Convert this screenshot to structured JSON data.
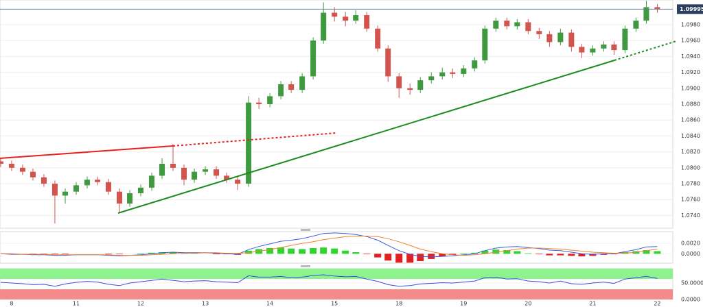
{
  "chart_data": [
    {
      "type": "candlestick",
      "x": [
        -0.17,
        0,
        0.17,
        0.33,
        0.5,
        0.67,
        0.83,
        1,
        1.17,
        1.33,
        1.5,
        1.67,
        1.83,
        2,
        2.17,
        2.33,
        2.5,
        2.67,
        2.83,
        3,
        3.17,
        3.33,
        3.5,
        3.67,
        3.83,
        4,
        4.17,
        4.33,
        4.5,
        4.67,
        4.83,
        5,
        5.17,
        5.33,
        5.5,
        5.67,
        5.83,
        6,
        6.17,
        6.33,
        6.5,
        6.67,
        6.83,
        7,
        7.17,
        7.33,
        7.5,
        7.67,
        7.83,
        8,
        8.17,
        8.33,
        8.5,
        8.67,
        8.83,
        9,
        9.17,
        9.33,
        9.5,
        9.67,
        9.83,
        10
      ],
      "open": [
        1.0808,
        1.0805,
        1.08,
        1.0795,
        1.0788,
        1.078,
        1.0765,
        1.077,
        1.0778,
        1.0785,
        1.0782,
        1.077,
        1.0755,
        1.0768,
        1.0775,
        1.079,
        1.0805,
        1.08,
        1.0785,
        1.0795,
        1.0798,
        1.079,
        1.0785,
        1.078,
        1.0882,
        1.088,
        1.089,
        1.0905,
        1.0898,
        1.0915,
        1.096,
        1.0995,
        1.099,
        1.0985,
        1.0992,
        1.0975,
        1.095,
        1.0915,
        1.09,
        1.0898,
        1.091,
        1.0915,
        1.092,
        1.0918,
        1.0925,
        1.0935,
        1.0975,
        1.0985,
        1.0978,
        1.0983,
        1.0972,
        1.0968,
        1.0958,
        1.097,
        1.0952,
        1.0945,
        1.095,
        1.0955,
        1.0948,
        1.0975,
        1.0985,
        1.1002
      ],
      "high": [
        1.0812,
        1.0809,
        1.0804,
        1.0799,
        1.0792,
        1.0784,
        1.0774,
        1.0782,
        1.0789,
        1.0789,
        1.0786,
        1.0774,
        1.0772,
        1.0779,
        1.0794,
        1.0812,
        1.083,
        1.0804,
        1.0799,
        1.0802,
        1.0802,
        1.0794,
        1.0789,
        1.089,
        1.0888,
        1.0894,
        1.0909,
        1.0909,
        1.0919,
        1.0964,
        1.1008,
        1.1002,
        1.0996,
        1.0998,
        1.0996,
        1.0979,
        1.0954,
        1.0919,
        1.0906,
        1.0914,
        1.092,
        1.0926,
        1.0925,
        1.0929,
        1.0939,
        1.0979,
        1.0989,
        1.0989,
        1.0987,
        1.0987,
        1.0976,
        1.0972,
        1.0975,
        1.0974,
        1.0956,
        1.0954,
        1.0959,
        1.0959,
        1.0979,
        1.0989,
        1.101,
        1.1006
      ],
      "low": [
        1.0801,
        1.0796,
        1.0791,
        1.0784,
        1.0776,
        1.073,
        1.0755,
        1.0766,
        1.0774,
        1.0778,
        1.0766,
        1.0743,
        1.0751,
        1.0764,
        1.0771,
        1.0786,
        1.0796,
        1.0778,
        1.0781,
        1.0791,
        1.0786,
        1.0781,
        1.0772,
        1.0776,
        1.0874,
        1.0876,
        1.0886,
        1.0894,
        1.0894,
        1.0911,
        1.0956,
        1.0984,
        1.0978,
        1.0981,
        1.0971,
        1.0946,
        1.0908,
        1.0888,
        1.0892,
        1.0894,
        1.0906,
        1.0911,
        1.0913,
        1.0914,
        1.0921,
        1.0931,
        1.0971,
        1.0974,
        1.0974,
        1.0968,
        1.0962,
        1.0952,
        1.0954,
        1.0946,
        1.0938,
        1.0941,
        1.0946,
        1.0942,
        1.0944,
        1.0971,
        1.0981,
        1.0995
      ],
      "close": [
        1.0805,
        1.08,
        1.0795,
        1.0788,
        1.078,
        1.0765,
        1.077,
        1.0778,
        1.0785,
        1.0782,
        1.077,
        1.0755,
        1.0768,
        1.0775,
        1.079,
        1.0805,
        1.08,
        1.0785,
        1.0795,
        1.0798,
        1.079,
        1.0785,
        1.078,
        1.0882,
        1.088,
        1.089,
        1.0905,
        1.0898,
        1.0915,
        1.096,
        1.0995,
        1.099,
        1.0985,
        1.0992,
        1.0975,
        1.095,
        1.0915,
        1.09,
        1.0898,
        1.091,
        1.0915,
        1.092,
        1.0918,
        1.0925,
        1.0935,
        1.0975,
        1.0985,
        1.0978,
        1.0983,
        1.0972,
        1.0968,
        1.0958,
        1.097,
        1.0952,
        1.0945,
        1.095,
        1.0955,
        1.0948,
        1.0975,
        1.0985,
        1.1002,
        1.09995
      ],
      "up_color": "#3f9a3f",
      "down_color": "#d2544e",
      "last_price": 1.09995,
      "xlim": [
        -0.18,
        10.24
      ],
      "xticks": [
        {
          "value": 0,
          "label": "8"
        },
        {
          "value": 1,
          "label": "11"
        },
        {
          "value": 2,
          "label": "12"
        },
        {
          "value": 3,
          "label": "13"
        },
        {
          "value": 4,
          "label": "14"
        },
        {
          "value": 5,
          "label": "15"
        },
        {
          "value": 6,
          "label": "18"
        },
        {
          "value": 7,
          "label": "19"
        },
        {
          "value": 8,
          "label": "20"
        },
        {
          "value": 9,
          "label": "21"
        },
        {
          "value": 10,
          "label": "22"
        }
      ],
      "ylim": [
        1.0724,
        1.1011
      ],
      "yticks": [
        {
          "value": 1.074,
          "label": "1.0740"
        },
        {
          "value": 1.076,
          "label": "1.0760"
        },
        {
          "value": 1.078,
          "label": "1.0780"
        },
        {
          "value": 1.08,
          "label": "1.0800"
        },
        {
          "value": 1.082,
          "label": "1.0820"
        },
        {
          "value": 1.084,
          "label": "1.0840"
        },
        {
          "value": 1.086,
          "label": "1.0860"
        },
        {
          "value": 1.088,
          "label": "1.0880"
        },
        {
          "value": 1.09,
          "label": "1.0900"
        },
        {
          "value": 1.092,
          "label": "1.0920"
        },
        {
          "value": 1.094,
          "label": "1.0940"
        },
        {
          "value": 1.096,
          "label": "1.0960"
        },
        {
          "value": 1.098,
          "label": "1.0980"
        }
      ],
      "grid": true
    },
    {
      "type": "macd",
      "series": [
        {
          "color": "#3c5ae0",
          "values": [
            0,
            -0.0001,
            -0.0001,
            -0.0002,
            -0.0002,
            -0.0003,
            -0.0003,
            -0.0002,
            -0.0002,
            -0.0002,
            -0.0003,
            -0.0004,
            -0.0003,
            -0.0002,
            0,
            0.0002,
            0.0003,
            0.0002,
            0.0002,
            0.0002,
            0.0001,
            0,
            -0.0001,
            0.0008,
            0.0014,
            0.0019,
            0.0024,
            0.0026,
            0.0029,
            0.0034,
            0.0039,
            0.004,
            0.0039,
            0.0037,
            0.0033,
            0.0026,
            0.0016,
            0.0006,
            -0.0001,
            -0.0005,
            -0.0006,
            -0.0005,
            -0.0004,
            -0.0002,
            0,
            0.0006,
            0.0011,
            0.0013,
            0.0014,
            0.0012,
            0.001,
            0.0007,
            0.0006,
            0.0003,
            0,
            -0.0001,
            0,
            0,
            0.0004,
            0.0008,
            0.0013,
            0.0014
          ]
        },
        {
          "color": "#f08030",
          "values": [
            0,
            0,
            -0.0001,
            -0.0001,
            -0.0001,
            -0.0002,
            -0.0002,
            -0.0002,
            -0.0002,
            -0.0002,
            -0.0002,
            -0.0003,
            -0.0003,
            -0.0003,
            -0.0002,
            -0.0001,
            0,
            0.0001,
            0.0001,
            0.0002,
            0.0002,
            0.0001,
            0.0001,
            0.0002,
            0.0005,
            0.0008,
            0.0012,
            0.0016,
            0.002,
            0.0023,
            0.0027,
            0.003,
            0.0033,
            0.0034,
            0.0034,
            0.0033,
            0.0029,
            0.0023,
            0.0016,
            0.0009,
            0.0004,
            0,
            -0.0002,
            -0.0003,
            -0.0002,
            0,
            0.0003,
            0.0006,
            0.0009,
            0.0011,
            0.0011,
            0.001,
            0.0009,
            0.0007,
            0.0005,
            0.0003,
            0.0002,
            0.0001,
            0.0001,
            0.0003,
            0.0006,
            0.0009
          ]
        }
      ],
      "histogram": [
        0,
        -0.0001,
        0,
        -0.0001,
        -0.0001,
        -0.0001,
        -0.0001,
        0,
        0,
        0,
        -0.0001,
        -0.0001,
        0,
        0.0001,
        0.0002,
        0.0003,
        0.0003,
        0.0001,
        0.0001,
        0,
        -0.0001,
        -0.0001,
        -0.0002,
        0.0006,
        0.0009,
        0.0011,
        0.0012,
        0.001,
        0.0009,
        0.0011,
        0.0012,
        0.001,
        0.0006,
        0.0003,
        -0.0001,
        -0.0007,
        -0.0013,
        -0.0017,
        -0.0017,
        -0.0014,
        -0.001,
        -0.0005,
        -0.0002,
        0.0001,
        0.0002,
        0.0006,
        0.0008,
        0.0007,
        0.0005,
        0.0001,
        -0.0001,
        -0.0003,
        -0.0003,
        -0.0004,
        -0.0005,
        -0.0004,
        -0.0002,
        -0.0001,
        0.0003,
        0.0005,
        0.0007,
        0.0005
      ],
      "up_color": "#2fd52f",
      "down_color": "#e32020",
      "ylim": [
        -0.0018,
        0.00425
      ],
      "yticks": [
        {
          "value": 0,
          "label": "0.0000"
        },
        {
          "value": 0.002,
          "label": "0.0020"
        }
      ]
    },
    {
      "type": "line",
      "series": [
        {
          "color": "#3050e0",
          "values": [
            52,
            50,
            48,
            45,
            46,
            40,
            47,
            52,
            55,
            53,
            46,
            42,
            50,
            54,
            58,
            62,
            58,
            54,
            56,
            57,
            54,
            53,
            51,
            72,
            68,
            68,
            70,
            66,
            68,
            73,
            75,
            71,
            69,
            70,
            62,
            55,
            45,
            40,
            42,
            47,
            49,
            51,
            50,
            53,
            56,
            66,
            68,
            62,
            63,
            56,
            54,
            50,
            56,
            48,
            46,
            50,
            53,
            49,
            62,
            66,
            70,
            64
          ]
        }
      ],
      "bands": [
        {
          "from": 62.5,
          "to": 93.75,
          "color": "#8ef28e"
        },
        {
          "from": 0,
          "to": 31,
          "color": "#f48a8a"
        }
      ],
      "ylim": [
        0,
        93.75
      ],
      "yticks": [
        {
          "value": 0,
          "label": "0.0000"
        },
        {
          "value": 50,
          "label": "50.0000"
        }
      ]
    }
  ]
}
